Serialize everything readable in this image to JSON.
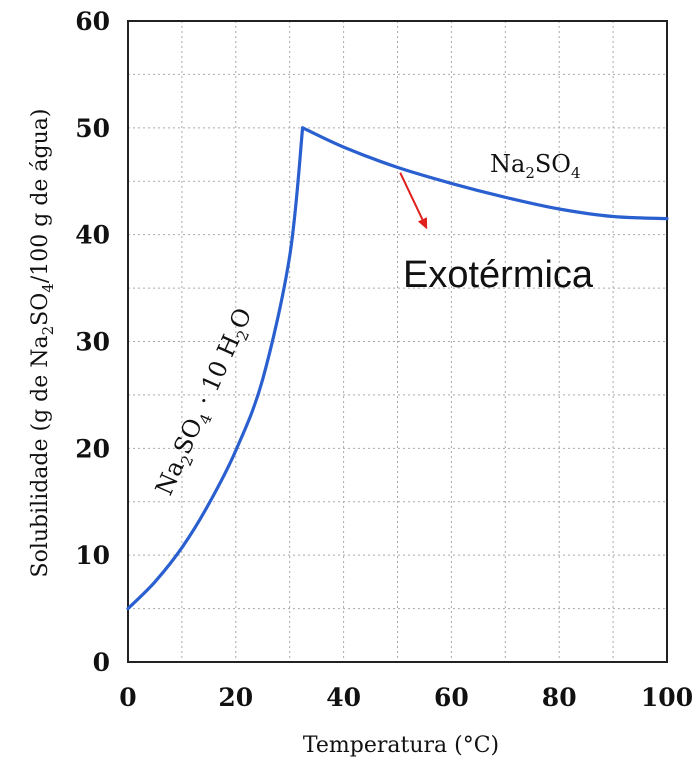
{
  "chart_data": {
    "type": "line",
    "xlabel": "Temperatura (°C)",
    "ylabel": "Solubilidade (g de Na2SO4/100 g de água)",
    "xlim": [
      0,
      100
    ],
    "ylim": [
      0,
      60
    ],
    "x_ticks": [
      "0",
      "20",
      "40",
      "60",
      "80",
      "100"
    ],
    "y_ticks": [
      "0",
      "10",
      "20",
      "30",
      "40",
      "50",
      "60"
    ],
    "grid": true,
    "line_color": "#2a5fd0",
    "series": [
      {
        "name": "Na2SO4 · 10 H2O",
        "x": [
          0,
          5,
          10,
          15,
          20,
          25,
          30,
          32.4
        ],
        "y": [
          5,
          7.5,
          10.7,
          14.8,
          19.8,
          26.5,
          38.0,
          50.0
        ]
      },
      {
        "name": "Na2SO4",
        "x": [
          32.4,
          40,
          50,
          60,
          70,
          80,
          90,
          100
        ],
        "y": [
          50.0,
          48.2,
          46.3,
          44.8,
          43.5,
          42.4,
          41.7,
          41.5
        ]
      }
    ],
    "annotations": [
      {
        "text": "Exotérmica",
        "arrow_from": [
          50.5,
          45.8
        ],
        "arrow_to": [
          55.5,
          40.5
        ],
        "arrow_color": "#e0201c"
      }
    ]
  }
}
